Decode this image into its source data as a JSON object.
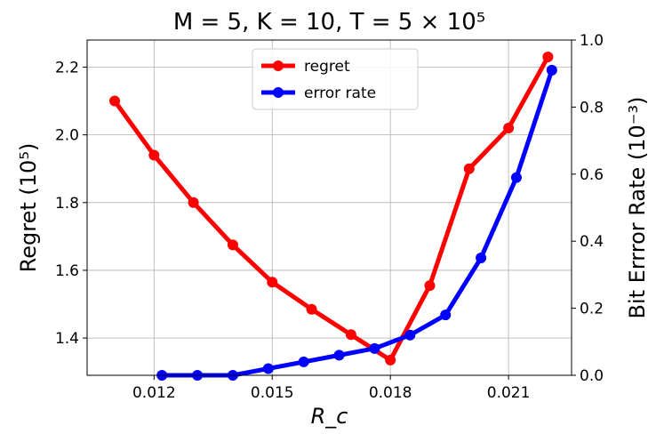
{
  "chart_data": {
    "type": "line",
    "title": "M = 5, K = 10, T = 5 × 10⁵",
    "xlabel": "R_c",
    "ylabel_left": "Regret (10⁵)",
    "ylabel_right": "Bit Errror Rate (10⁻³)",
    "xlim": [
      0.0103,
      0.0226
    ],
    "ylim_left": [
      1.29,
      2.28
    ],
    "ylim_right": [
      0.0,
      1.0
    ],
    "x_ticks": [
      0.012,
      0.015,
      0.018,
      0.021
    ],
    "x_tick_labels": [
      "0.012",
      "0.015",
      "0.018",
      "0.021"
    ],
    "y_left_ticks": [
      1.4,
      1.6,
      1.8,
      2.0,
      2.2
    ],
    "y_left_tick_labels": [
      "1.4",
      "1.6",
      "1.8",
      "2.0",
      "2.2"
    ],
    "y_right_ticks": [
      0.0,
      0.2,
      0.4,
      0.6,
      0.8,
      1.0
    ],
    "y_right_tick_labels": [
      "0.0",
      "0.2",
      "0.4",
      "0.6",
      "0.8",
      "1.0"
    ],
    "grid": true,
    "legend_position": "top-center",
    "series": [
      {
        "name": "regret",
        "axis": "left",
        "color": "#ff0000",
        "x": [
          0.011,
          0.012,
          0.013,
          0.014,
          0.015,
          0.016,
          0.017,
          0.018,
          0.019,
          0.02,
          0.021,
          0.022
        ],
        "y": [
          2.1,
          1.94,
          1.8,
          1.675,
          1.565,
          1.485,
          1.41,
          1.335,
          1.555,
          1.9,
          2.02,
          2.23
        ]
      },
      {
        "name": "error rate",
        "axis": "right",
        "color": "#0000ff",
        "x": [
          0.0122,
          0.0131,
          0.014,
          0.0149,
          0.0158,
          0.0167,
          0.0176,
          0.0185,
          0.0194,
          0.0203,
          0.0212,
          0.0221
        ],
        "y": [
          0.0,
          0.0,
          0.0,
          0.02,
          0.04,
          0.06,
          0.08,
          0.12,
          0.18,
          0.35,
          0.59,
          0.91
        ]
      }
    ]
  }
}
